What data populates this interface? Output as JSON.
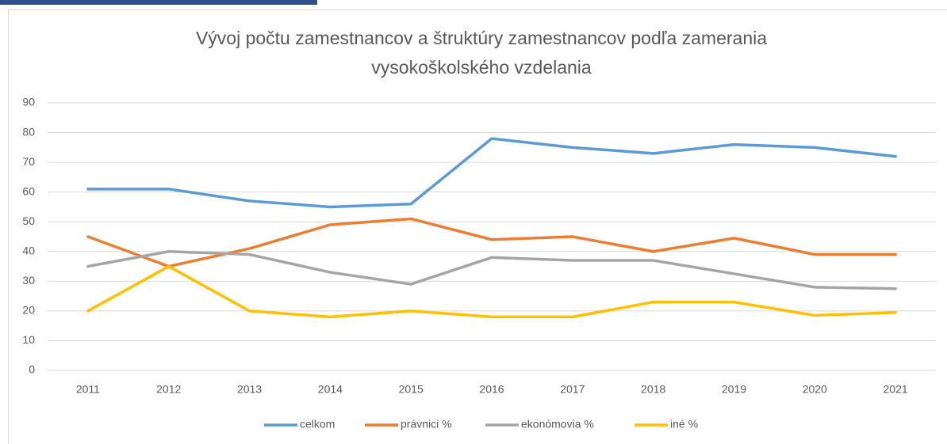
{
  "chart_data": {
    "type": "line",
    "title": [
      "Vývoj počtu zamestnancov a štruktúry zamestnancov podľa zamerania",
      "vysokoškolského vzdelania"
    ],
    "categories": [
      "2011",
      "2012",
      "2013",
      "2014",
      "2015",
      "2016",
      "2017",
      "2018",
      "2019",
      "2020",
      "2021"
    ],
    "series": [
      {
        "name": "celkom",
        "color": "#5b9bd5",
        "values": [
          61,
          61,
          57,
          55,
          56,
          78,
          75,
          73,
          76,
          75,
          72
        ]
      },
      {
        "name": "právnici %",
        "color": "#ed7d31",
        "values": [
          45,
          35,
          41,
          49,
          51,
          44,
          45,
          40,
          44.5,
          39,
          39
        ]
      },
      {
        "name": "ekonómovia %",
        "color": "#a5a5a5",
        "values": [
          35,
          40,
          39,
          33,
          29,
          38,
          37,
          37,
          32.5,
          28,
          27.5
        ]
      },
      {
        "name": "iné %",
        "color": "#ffc000",
        "values": [
          20,
          35,
          20,
          18,
          20,
          18,
          18,
          23,
          23,
          18.5,
          19.5
        ]
      }
    ],
    "ylim": [
      0,
      90
    ],
    "yticks": [
      0,
      10,
      20,
      30,
      40,
      50,
      60,
      70,
      80,
      90
    ],
    "grid": true,
    "legend": "bottom"
  }
}
